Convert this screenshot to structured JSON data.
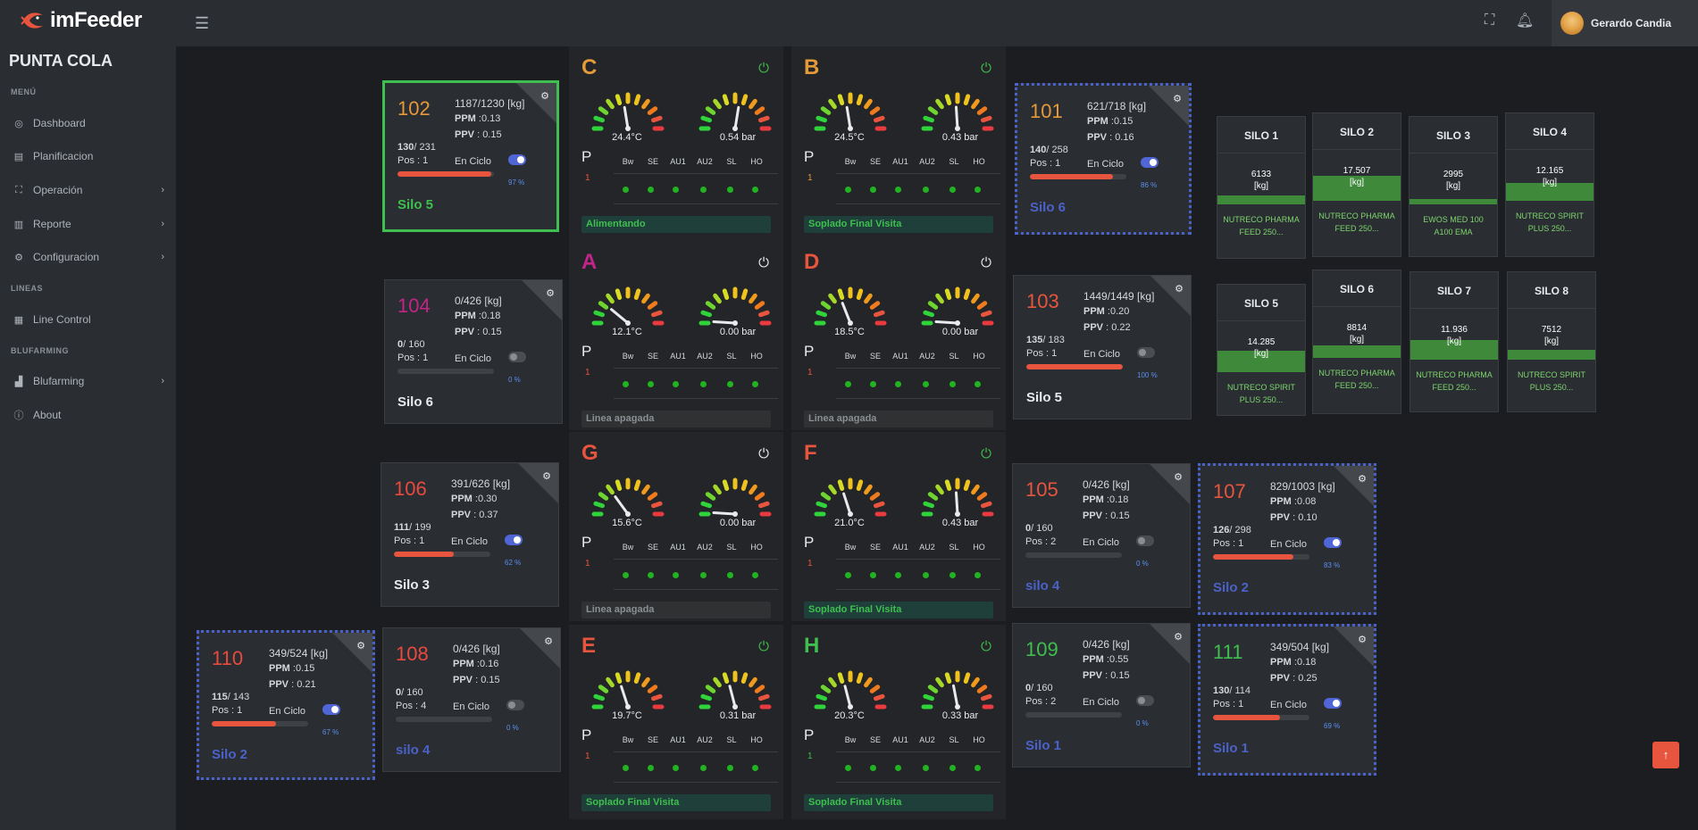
{
  "brand": {
    "logo": "imFeeder"
  },
  "site": "PUNTA COLA",
  "sidebar": {
    "sec_menu": "MENÚ",
    "sec_lineas": "LINEAS",
    "sec_blufarming": "BLUFARMING",
    "items": [
      {
        "label": "Dashboard",
        "icon": "dashboard-icon"
      },
      {
        "label": "Planificacion",
        "icon": "calendar-icon"
      },
      {
        "label": "Operación",
        "icon": "operation-icon"
      },
      {
        "label": "Reporte",
        "icon": "report-icon"
      },
      {
        "label": "Configuracion",
        "icon": "gear-icon"
      },
      {
        "label": "Line Control",
        "icon": "line-control-icon"
      },
      {
        "label": "Blufarming",
        "icon": "blufarming-icon"
      },
      {
        "label": "About",
        "icon": "info-icon"
      }
    ]
  },
  "topbar": {
    "user": "Gerardo Candia"
  },
  "cards": [
    {
      "num": "102",
      "color": "#e59a3a",
      "kg": "1187/1230 [kg]",
      "ppm": ":0.13",
      "ppv": ": 0.15",
      "count": "130",
      "count_total": "/ 231",
      "pos": "Pos : 1",
      "ciclo": "En Ciclo",
      "on": true,
      "pct": "97 %",
      "pct_val": 0.97,
      "silo": "Silo 5",
      "silo_color": "#3fbf4f",
      "sel": "green"
    },
    {
      "num": "104",
      "color": "#c2258a",
      "kg": "0/426 [kg]",
      "ppm": ":0.18",
      "ppv": ": 0.15",
      "count": "0",
      "count_total": "/ 160",
      "pos": "Pos : 1",
      "ciclo": "En Ciclo",
      "on": false,
      "pct": "0 %",
      "pct_val": 0.0,
      "silo": "Silo 6",
      "silo_color": "#e8eaed",
      "sel": ""
    },
    {
      "num": "106",
      "color": "#e84a3f",
      "kg": "391/626 [kg]",
      "ppm": ":0.30",
      "ppv": ": 0.37",
      "count": "111",
      "count_total": "/ 199",
      "pos": "Pos : 1",
      "ciclo": "En Ciclo",
      "on": true,
      "pct": "62 %",
      "pct_val": 0.62,
      "silo": "Silo 3",
      "silo_color": "#e8eaed",
      "sel": ""
    },
    {
      "num": "108",
      "color": "#e84a3f",
      "kg": "0/426 [kg]",
      "ppm": ":0.16",
      "ppv": ": 0.15",
      "count": "0",
      "count_total": "/ 160",
      "pos": "Pos : 4",
      "ciclo": "En Ciclo",
      "on": false,
      "pct": "0 %",
      "pct_val": 0.0,
      "silo": "silo 4",
      "silo_color": "#4b62c9",
      "sel": ""
    },
    {
      "num": "110",
      "color": "#e84a3f",
      "kg": "349/524 [kg]",
      "ppm": ":0.15",
      "ppv": ": 0.21",
      "count": "115",
      "count_total": "/ 143",
      "pos": "Pos : 1",
      "ciclo": "En Ciclo",
      "on": true,
      "pct": "67 %",
      "pct_val": 0.67,
      "silo": "Silo 2",
      "silo_color": "#4b62c9",
      "sel": "blue"
    },
    {
      "num": "101",
      "color": "#e59a3a",
      "kg": "621/718 [kg]",
      "ppm": ":0.15",
      "ppv": ": 0.16",
      "count": "140",
      "count_total": "/ 258",
      "pos": "Pos : 1",
      "ciclo": "En Ciclo",
      "on": true,
      "pct": "86 %",
      "pct_val": 0.86,
      "silo": "Silo 6",
      "silo_color": "#4b62c9",
      "sel": "blue"
    },
    {
      "num": "103",
      "color": "#e8553f",
      "kg": "1449/1449 [kg]",
      "ppm": ":0.20",
      "ppv": ": 0.22",
      "count": "135",
      "count_total": "/ 183",
      "pos": "Pos : 1",
      "ciclo": "En Ciclo",
      "on": false,
      "pct": "100 %",
      "pct_val": 1.0,
      "silo": "Silo 5",
      "silo_color": "#e8eaed",
      "sel": ""
    },
    {
      "num": "105",
      "color": "#e8553f",
      "kg": "0/426 [kg]",
      "ppm": ":0.18",
      "ppv": ": 0.15",
      "count": "0",
      "count_total": "/ 160",
      "pos": "Pos : 2",
      "ciclo": "En Ciclo",
      "on": false,
      "pct": "0 %",
      "pct_val": 0.0,
      "silo": "silo 4",
      "silo_color": "#4b62c9",
      "sel": ""
    },
    {
      "num": "109",
      "color": "#3fbf4f",
      "kg": "0/426 [kg]",
      "ppm": ":0.55",
      "ppv": ": 0.15",
      "count": "0",
      "count_total": "/ 160",
      "pos": "Pos : 2",
      "ciclo": "En Ciclo",
      "on": false,
      "pct": "0 %",
      "pct_val": 0.0,
      "silo": "Silo 1",
      "silo_color": "#4b62c9",
      "sel": ""
    },
    {
      "num": "107",
      "color": "#e8553f",
      "kg": "829/1003 [kg]",
      "ppm": ":0.08",
      "ppv": ": 0.10",
      "count": "126",
      "count_total": "/ 298",
      "pos": "Pos : 1",
      "ciclo": "En Ciclo",
      "on": true,
      "pct": "83 %",
      "pct_val": 0.83,
      "silo": "Silo 2",
      "silo_color": "#4b62c9",
      "sel": "blue"
    },
    {
      "num": "111",
      "color": "#3fbf4f",
      "kg": "349/504 [kg]",
      "ppm": ":0.18",
      "ppv": ": 0.25",
      "count": "130",
      "count_total": "/ 114",
      "pos": "Pos : 1",
      "ciclo": "En Ciclo",
      "on": true,
      "pct": "69 %",
      "pct_val": 0.69,
      "silo": "Silo 1",
      "silo_color": "#4b62c9",
      "sel": "blue"
    }
  ],
  "gauges": [
    {
      "letter": "C",
      "color": "#e59a3a",
      "pwr_color": "#3fbf4f",
      "temp": "24.4°C",
      "bar": "0.54 bar",
      "one": "1",
      "one_color": "#e8553f",
      "state": "Alimentando",
      "state_bg": "#1f3f3a",
      "state_fg": "#3fbf4f",
      "needle1": 0.45,
      "needle2": 0.55
    },
    {
      "letter": "B",
      "color": "#e59a3a",
      "pwr_color": "#3fbf4f",
      "temp": "24.5°C",
      "bar": "0.43 bar",
      "one": "1",
      "one_color": "#e59a3a",
      "state": "Soplado Final Visita",
      "state_bg": "#1f3f3a",
      "state_fg": "#3fbf4f",
      "needle1": 0.45,
      "needle2": 0.48
    },
    {
      "letter": "A",
      "color": "#c2258a",
      "pwr_color": "#e8eaed",
      "temp": "12.1°C",
      "bar": "0.00 bar",
      "one": "1",
      "one_color": "#e8553f",
      "state": "Linea apagada",
      "state_bg": "#2f3133",
      "state_fg": "#8a8e93",
      "needle1": 0.22,
      "needle2": 0.02
    },
    {
      "letter": "D",
      "color": "#e8553f",
      "pwr_color": "#e8eaed",
      "temp": "18.5°C",
      "bar": "0.00 bar",
      "one": "1",
      "one_color": "#e8553f",
      "state": "Linea apagada",
      "state_bg": "#2f3133",
      "state_fg": "#8a8e93",
      "needle1": 0.38,
      "needle2": 0.02
    },
    {
      "letter": "G",
      "color": "#e8553f",
      "pwr_color": "#e8eaed",
      "temp": "15.6°C",
      "bar": "0.00 bar",
      "one": "1",
      "one_color": "#e8553f",
      "state": "Linea apagada",
      "state_bg": "#2f3133",
      "state_fg": "#8a8e93",
      "needle1": 0.3,
      "needle2": 0.02
    },
    {
      "letter": "F",
      "color": "#e8553f",
      "pwr_color": "#3fbf4f",
      "temp": "21.0°C",
      "bar": "0.43 bar",
      "one": "1",
      "one_color": "#e8553f",
      "state": "Soplado Final Visita",
      "state_bg": "#1f3f3a",
      "state_fg": "#3fbf4f",
      "needle1": 0.4,
      "needle2": 0.48
    },
    {
      "letter": "E",
      "color": "#e8553f",
      "pwr_color": "#3fbf4f",
      "temp": "19.7°C",
      "bar": "0.31 bar",
      "one": "1",
      "one_color": "#e8553f",
      "state": "Soplado Final Visita",
      "state_bg": "#1f3f3a",
      "state_fg": "#3fbf4f",
      "needle1": 0.4,
      "needle2": 0.42
    },
    {
      "letter": "H",
      "color": "#3fbf4f",
      "pwr_color": "#3fbf4f",
      "temp": "20.3°C",
      "bar": "0.33 bar",
      "one": "1",
      "one_color": "#3fbf4f",
      "state": "Soplado Final Visita",
      "state_bg": "#1f3f3a",
      "state_fg": "#3fbf4f",
      "needle1": 0.42,
      "needle2": 0.44
    }
  ],
  "gauge_cols": [
    "Bw",
    "SE",
    "AU1",
    "AU2",
    "SL",
    "HO"
  ],
  "p_label": "P",
  "silos": [
    {
      "name": "SILO 1",
      "val": "6133",
      "unit": "[kg]",
      "feed": "NUTRECO PHARMA FEED 250...",
      "level": 0.07
    },
    {
      "name": "SILO 2",
      "val": "17.507",
      "unit": "[kg]",
      "feed": "NUTRECO PHARMA FEED 250...",
      "level": 0.2
    },
    {
      "name": "SILO 3",
      "val": "2995",
      "unit": "[kg]",
      "feed": "EWOS MED 100 A100 EMA",
      "level": 0.04
    },
    {
      "name": "SILO 4",
      "val": "12.165",
      "unit": "[kg]",
      "feed": "NUTRECO SPIRIT PLUS 250...",
      "level": 0.14
    },
    {
      "name": "SILO 5",
      "val": "14.285",
      "unit": "[kg]",
      "feed": "NUTRECO SPIRIT PLUS 250...",
      "level": 0.17
    },
    {
      "name": "SILO 6",
      "val": "8814",
      "unit": "[kg]",
      "feed": "NUTRECO PHARMA FEED 250...",
      "level": 0.1
    },
    {
      "name": "SILO 7",
      "val": "11.936",
      "unit": "[kg]",
      "feed": "NUTRECO PHARMA FEED 250...",
      "level": 0.16
    },
    {
      "name": "SILO 8",
      "val": "7512",
      "unit": "[kg]",
      "feed": "NUTRECO SPIRIT PLUS 250...",
      "level": 0.08
    }
  ]
}
